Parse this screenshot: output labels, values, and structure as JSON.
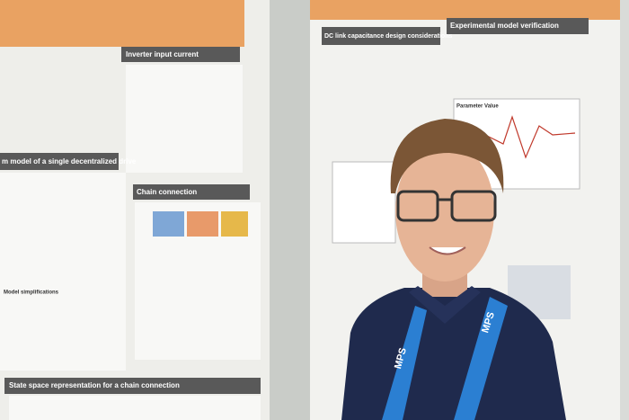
{
  "left_poster": {
    "sections": [
      "Inverter input current",
      "m model of a single decentralized drive",
      "Chain connection",
      "State space representation for a chain connection"
    ],
    "subheading": "Model simplifications"
  },
  "right_poster": {
    "sections": [
      "DC link capacitance design considerations",
      "Experimental model verification"
    ],
    "plot_label": "Parameter Value"
  },
  "lanyard": {
    "text": "MPS"
  }
}
